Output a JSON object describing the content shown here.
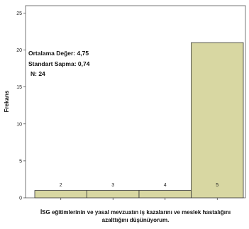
{
  "chart_data": {
    "type": "bar",
    "categories": [
      "2",
      "3",
      "4",
      "5"
    ],
    "values": [
      1,
      1,
      1,
      21
    ],
    "ylabel": "Frekans",
    "xlabel_lines": [
      "İSG eğitimlerinin ve yasal mevzuatın iş kazalarını ve meslek hastalığını",
      "azalttığını düşünüyorum."
    ],
    "ylim": [
      0,
      26
    ],
    "yticks": [
      "0",
      "5",
      "10",
      "15",
      "20",
      "25"
    ],
    "grid": false,
    "colors": {
      "bar_fill": "#d8d7a2",
      "bar_stroke": "#333333",
      "background": "#ffffff"
    },
    "stats": {
      "mean": "Ortalama Değer: 4,75",
      "std": "Standart Sapma: 0,74",
      "n": "N: 24"
    }
  }
}
